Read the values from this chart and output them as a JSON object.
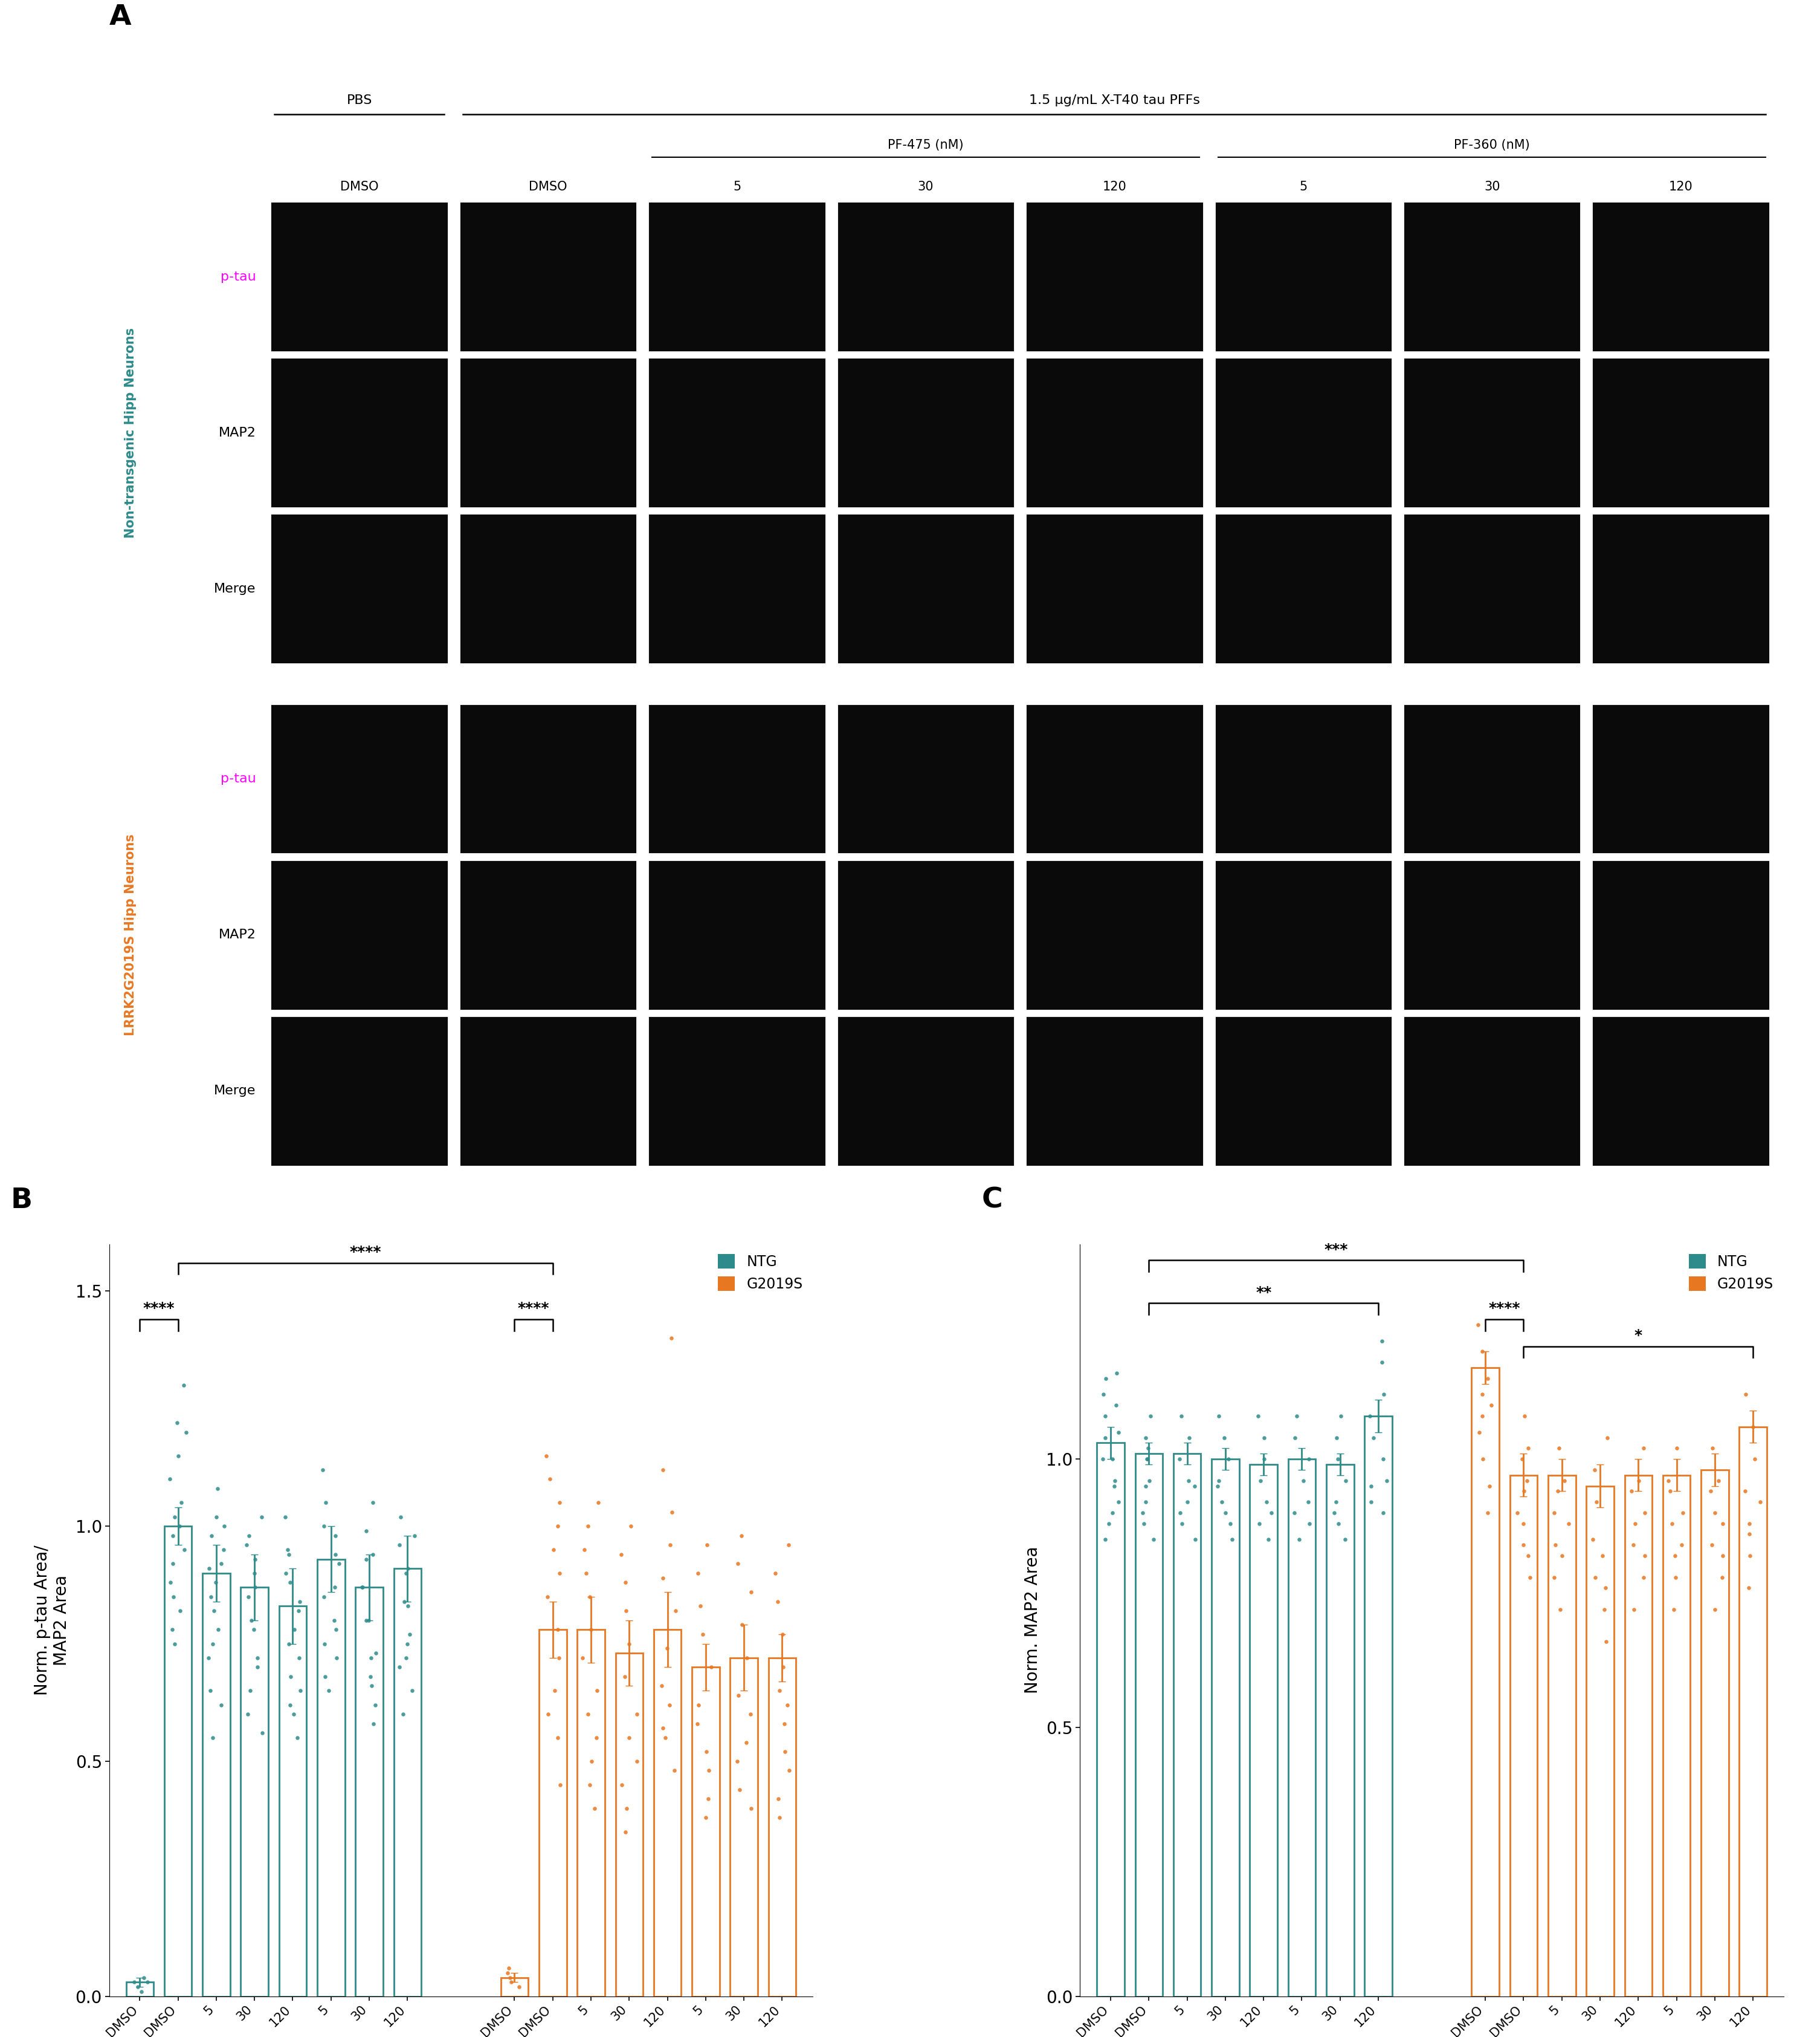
{
  "teal_color": "#2E8B8B",
  "orange_color": "#E87722",
  "background_color": "#ffffff",
  "ylabel_B": "Norm. p-tau Area/\nMAP2 Area",
  "ylabel_C": "Norm. MAP2 Area",
  "ylim_B": [
    0.0,
    1.6
  ],
  "ylim_C": [
    0.0,
    1.4
  ],
  "yticks_B": [
    0.0,
    0.5,
    1.0,
    1.5
  ],
  "yticks_C": [
    0.0,
    0.5,
    1.0
  ],
  "NTG_B_means": [
    0.03,
    1.0,
    0.9,
    0.87,
    0.83,
    0.93,
    0.87,
    0.91
  ],
  "NTG_B_sems": [
    0.01,
    0.04,
    0.06,
    0.07,
    0.08,
    0.07,
    0.07,
    0.07
  ],
  "G2019S_B_means": [
    0.04,
    0.78,
    0.78,
    0.73,
    0.78,
    0.7,
    0.72,
    0.72
  ],
  "G2019S_B_sems": [
    0.01,
    0.06,
    0.07,
    0.07,
    0.08,
    0.05,
    0.07,
    0.05
  ],
  "NTG_C_means": [
    1.03,
    1.01,
    1.01,
    1.0,
    0.99,
    1.0,
    0.99,
    1.08
  ],
  "NTG_C_sems": [
    0.03,
    0.02,
    0.02,
    0.02,
    0.02,
    0.02,
    0.02,
    0.03
  ],
  "G2019S_C_means": [
    1.17,
    0.97,
    0.97,
    0.95,
    0.97,
    0.97,
    0.98,
    1.06
  ],
  "G2019S_C_sems": [
    0.03,
    0.04,
    0.03,
    0.04,
    0.03,
    0.03,
    0.03,
    0.03
  ],
  "NTG_B_data": [
    [
      0.02,
      0.03,
      0.04,
      0.01,
      0.03
    ],
    [
      0.78,
      0.88,
      0.95,
      1.0,
      1.05,
      1.1,
      1.2,
      1.3,
      0.85,
      0.92,
      0.98,
      1.02,
      1.15,
      1.22,
      0.75,
      0.82
    ],
    [
      0.65,
      0.75,
      0.82,
      0.88,
      0.92,
      0.98,
      1.02,
      1.08,
      0.72,
      0.78,
      0.85,
      0.91,
      0.95,
      1.0,
      0.62,
      0.55
    ],
    [
      0.6,
      0.7,
      0.78,
      0.85,
      0.9,
      0.96,
      1.02,
      0.65,
      0.72,
      0.8,
      0.87,
      0.93,
      0.98,
      0.56
    ],
    [
      0.55,
      0.65,
      0.72,
      0.78,
      0.84,
      0.9,
      0.95,
      1.02,
      0.62,
      0.68,
      0.75,
      0.82,
      0.88,
      0.94,
      0.6
    ],
    [
      0.68,
      0.78,
      0.85,
      0.92,
      0.98,
      1.05,
      1.12,
      0.72,
      0.8,
      0.87,
      0.94,
      1.0,
      0.65,
      0.75
    ],
    [
      0.62,
      0.72,
      0.8,
      0.87,
      0.93,
      0.99,
      1.05,
      0.66,
      0.73,
      0.8,
      0.87,
      0.94,
      0.58,
      0.68
    ],
    [
      0.65,
      0.75,
      0.83,
      0.9,
      0.96,
      1.02,
      0.7,
      0.77,
      0.84,
      0.91,
      0.98,
      0.6,
      0.72
    ]
  ],
  "G2019S_B_data": [
    [
      0.02,
      0.04,
      0.05,
      0.03,
      0.06
    ],
    [
      0.45,
      0.55,
      0.65,
      0.72,
      0.78,
      0.85,
      0.9,
      0.95,
      1.0,
      1.05,
      1.1,
      1.15,
      0.6
    ],
    [
      0.45,
      0.55,
      0.65,
      0.72,
      0.78,
      0.85,
      0.9,
      0.95,
      1.0,
      1.05,
      0.6,
      0.5,
      0.4
    ],
    [
      0.4,
      0.5,
      0.6,
      0.68,
      0.75,
      0.82,
      0.88,
      0.94,
      1.0,
      0.55,
      0.45,
      0.35
    ],
    [
      0.48,
      0.57,
      0.66,
      0.74,
      0.82,
      0.89,
      0.96,
      1.03,
      1.12,
      1.4,
      0.55,
      0.62
    ],
    [
      0.42,
      0.52,
      0.62,
      0.7,
      0.77,
      0.83,
      0.9,
      0.96,
      0.48,
      0.58,
      0.38
    ],
    [
      0.44,
      0.54,
      0.64,
      0.72,
      0.79,
      0.86,
      0.92,
      0.98,
      0.5,
      0.4,
      0.6
    ],
    [
      0.42,
      0.52,
      0.62,
      0.7,
      0.77,
      0.84,
      0.9,
      0.96,
      0.48,
      0.58,
      0.38,
      0.65
    ]
  ],
  "NTG_C_data": [
    [
      0.88,
      0.92,
      0.96,
      1.0,
      1.04,
      1.08,
      1.12,
      1.16,
      0.9,
      0.95,
      1.0,
      1.05,
      1.1,
      1.15,
      0.85
    ],
    [
      0.88,
      0.92,
      0.96,
      1.0,
      1.04,
      1.08,
      0.9,
      0.95,
      1.0,
      1.02,
      0.85
    ],
    [
      0.88,
      0.92,
      0.96,
      1.0,
      1.04,
      1.08,
      0.9,
      0.95,
      0.85
    ],
    [
      0.88,
      0.92,
      0.96,
      1.0,
      1.04,
      1.08,
      0.9,
      0.95,
      0.85
    ],
    [
      0.88,
      0.92,
      0.96,
      1.0,
      1.04,
      1.08,
      0.9,
      0.85
    ],
    [
      0.88,
      0.92,
      0.96,
      1.0,
      1.04,
      1.08,
      0.9,
      0.85
    ],
    [
      0.88,
      0.92,
      0.96,
      1.0,
      1.04,
      1.08,
      0.9,
      0.85
    ],
    [
      0.92,
      0.96,
      1.0,
      1.04,
      1.08,
      1.12,
      1.18,
      1.22,
      0.9,
      0.95
    ]
  ],
  "G2019S_C_data": [
    [
      1.0,
      1.05,
      1.1,
      1.15,
      1.2,
      1.25,
      1.12,
      1.08,
      0.95,
      0.9
    ],
    [
      0.78,
      0.84,
      0.9,
      0.96,
      1.02,
      1.08,
      0.82,
      0.88,
      0.94,
      1.0
    ],
    [
      0.78,
      0.84,
      0.9,
      0.96,
      1.02,
      0.82,
      0.88,
      0.94,
      0.72
    ],
    [
      0.72,
      0.78,
      0.85,
      0.92,
      0.98,
      1.04,
      0.76,
      0.82,
      0.66
    ],
    [
      0.78,
      0.84,
      0.9,
      0.96,
      1.02,
      0.82,
      0.88,
      0.94,
      0.72
    ],
    [
      0.78,
      0.84,
      0.9,
      0.96,
      1.02,
      0.82,
      0.88,
      0.94,
      0.72
    ],
    [
      0.78,
      0.84,
      0.9,
      0.96,
      1.02,
      0.82,
      0.88,
      0.94,
      0.72
    ],
    [
      0.82,
      0.88,
      0.94,
      1.0,
      1.06,
      1.12,
      0.86,
      0.92,
      0.76
    ]
  ],
  "legend_labels": [
    "NTG",
    "G2019S"
  ],
  "teal_label": "Non-transgenic Hipp Neurons",
  "orange_label": "LRRK2G2019S Hipp Neurons",
  "col_labels": [
    "DMSO",
    "DMSO",
    "5",
    "30",
    "120",
    "5",
    "30",
    "120"
  ],
  "top_header": "1.5 μg/mL X-T40 tau PFFs",
  "pbs_header": "PBS",
  "pf475_header": "PF-475 (nM)",
  "pf360_header": "PF-360 (nM)",
  "row_labels": [
    "p-tau",
    "MAP2",
    "Merge"
  ],
  "magenta_color": "#FF00FF"
}
